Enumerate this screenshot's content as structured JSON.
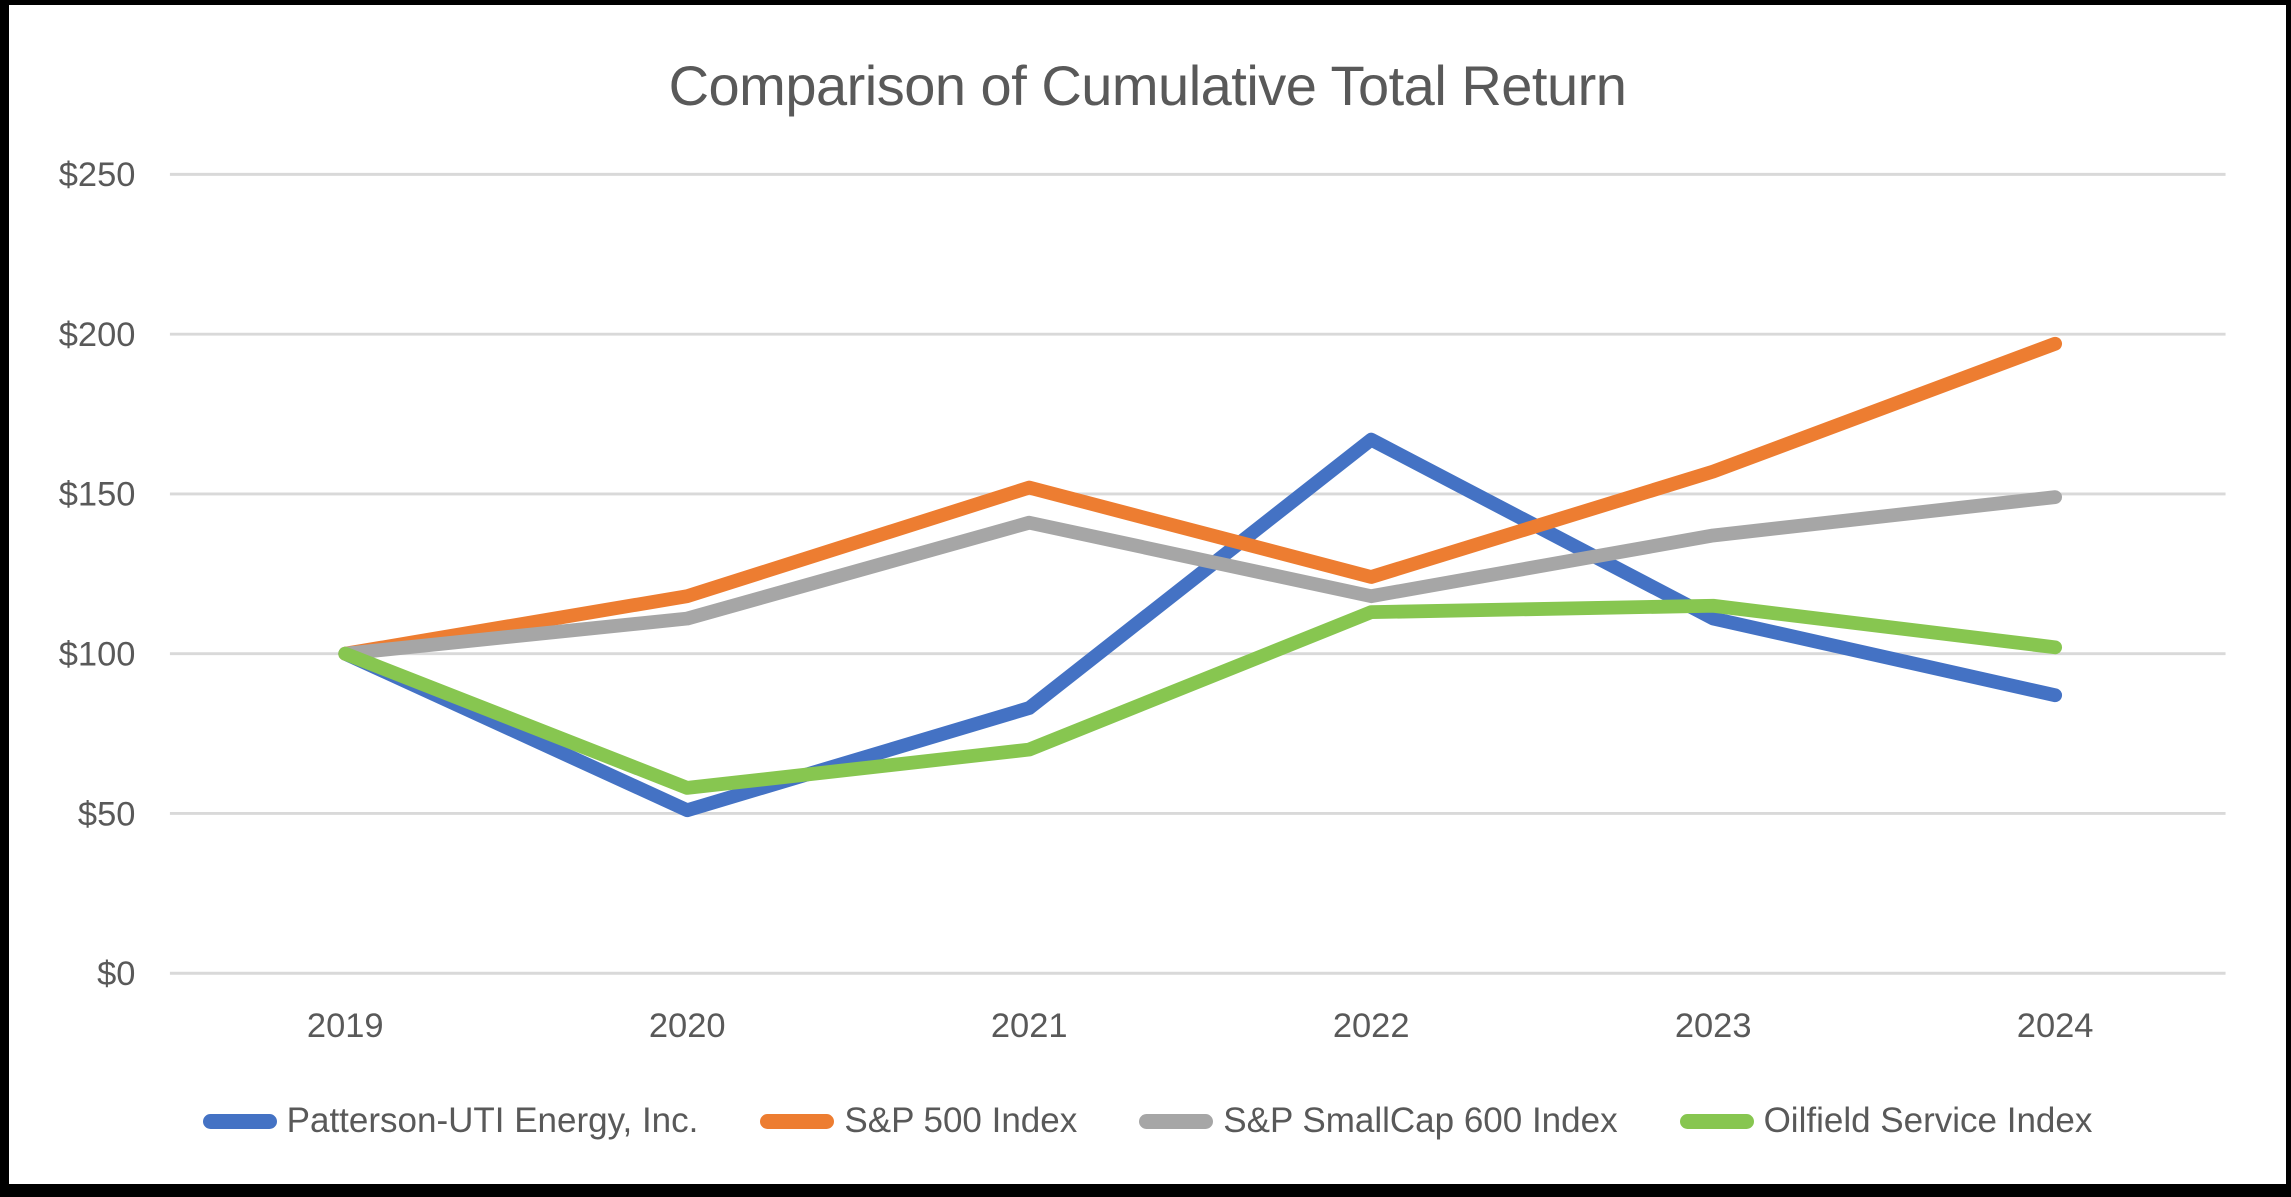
{
  "chart_data": {
    "type": "line",
    "title": "Comparison of Cumulative Total Return",
    "x_tick_labels": [
      "2019",
      "2020",
      "2021",
      "2022",
      "2023",
      "2024"
    ],
    "y_tick_labels": [
      "$0",
      "$50",
      "$100",
      "$150",
      "$200",
      "$250"
    ],
    "ylim": [
      0,
      250
    ],
    "y_tick_step": 50,
    "grid": "horizontal-on",
    "legend_position": "bottom",
    "background_color": "#FFFFFF",
    "frame_border_color": "#000000",
    "text_color": "#595959",
    "gridline_color": "#D9D9D9",
    "series": [
      {
        "name": "Patterson-UTI Energy, Inc.",
        "color": "#4472C4",
        "values": [
          100,
          51,
          83,
          167,
          111,
          87
        ]
      },
      {
        "name": "S&P 500 Index",
        "color": "#ED7D31",
        "values": [
          100,
          118,
          152,
          124,
          157,
          197
        ]
      },
      {
        "name": "S&P SmallCap 600 Index",
        "color": "#A6A6A6",
        "values": [
          100,
          111,
          141,
          118,
          137,
          149
        ]
      },
      {
        "name": "Oilfield Service Index",
        "color": "#87C650",
        "values": [
          100,
          58,
          70,
          113,
          115,
          102
        ]
      }
    ]
  }
}
